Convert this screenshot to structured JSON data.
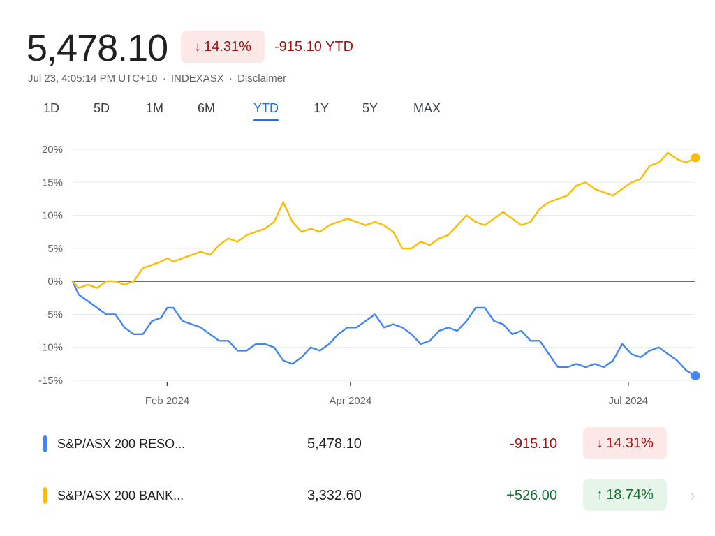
{
  "header": {
    "price": "5,478.10",
    "change_arrow": "↓",
    "change_pct": "14.31%",
    "ytd_change": "-915.10 YTD",
    "timestamp": "Jul 23, 4:05:14 PM UTC+10",
    "exchange": "INDEXASX",
    "disclaimer": "Disclaimer",
    "separator": "·"
  },
  "tabs": [
    {
      "label": "1D",
      "active": false
    },
    {
      "label": "5D",
      "active": false
    },
    {
      "label": "1M",
      "active": false
    },
    {
      "label": "6M",
      "active": false
    },
    {
      "label": "YTD",
      "active": true
    },
    {
      "label": "1Y",
      "active": false
    },
    {
      "label": "5Y",
      "active": false
    },
    {
      "label": "MAX",
      "active": false
    }
  ],
  "colors": {
    "blue_series": "#4285f4",
    "yellow_series": "#fbbc04",
    "negative": "#a50e0e",
    "positive": "#137333",
    "grid": "#e8eaed",
    "zero_line": "#3c4043"
  },
  "chart_data": {
    "type": "line",
    "title": "",
    "xlabel": "",
    "ylabel": "",
    "ylim": [
      -15,
      20
    ],
    "yticks": [
      20,
      15,
      10,
      5,
      0,
      -5,
      -10,
      -15
    ],
    "ytick_labels": [
      "20%",
      "15%",
      "10%",
      "5%",
      "0%",
      "-5%",
      "-10%",
      "-15%"
    ],
    "xlim": [
      "2024-01-01",
      "2024-07-23"
    ],
    "xticks": [
      {
        "date": "2024-02-01",
        "label": "Feb 2024"
      },
      {
        "date": "2024-04-01",
        "label": "Apr 2024"
      },
      {
        "date": "2024-07-01",
        "label": "Jul 2024"
      }
    ],
    "grid": true,
    "series": [
      {
        "name": "S&P/ASX 200 RESO...",
        "color": "#4285f4",
        "points": [
          [
            "2024-01-01",
            0
          ],
          [
            "2024-01-03",
            -2
          ],
          [
            "2024-01-06",
            -3
          ],
          [
            "2024-01-09",
            -4
          ],
          [
            "2024-01-12",
            -5
          ],
          [
            "2024-01-15",
            -5
          ],
          [
            "2024-01-18",
            -7
          ],
          [
            "2024-01-21",
            -8
          ],
          [
            "2024-01-24",
            -8
          ],
          [
            "2024-01-27",
            -6
          ],
          [
            "2024-01-30",
            -5.5
          ],
          [
            "2024-02-01",
            -4
          ],
          [
            "2024-02-03",
            -4
          ],
          [
            "2024-02-06",
            -6
          ],
          [
            "2024-02-09",
            -6.5
          ],
          [
            "2024-02-12",
            -7
          ],
          [
            "2024-02-15",
            -8
          ],
          [
            "2024-02-18",
            -9
          ],
          [
            "2024-02-21",
            -9
          ],
          [
            "2024-02-24",
            -10.5
          ],
          [
            "2024-02-27",
            -10.5
          ],
          [
            "2024-03-01",
            -9.5
          ],
          [
            "2024-03-04",
            -9.5
          ],
          [
            "2024-03-07",
            -10
          ],
          [
            "2024-03-10",
            -12
          ],
          [
            "2024-03-13",
            -12.5
          ],
          [
            "2024-03-16",
            -11.5
          ],
          [
            "2024-03-19",
            -10
          ],
          [
            "2024-03-22",
            -10.5
          ],
          [
            "2024-03-25",
            -9.5
          ],
          [
            "2024-03-28",
            -8
          ],
          [
            "2024-03-31",
            -7
          ],
          [
            "2024-04-03",
            -7
          ],
          [
            "2024-04-06",
            -6
          ],
          [
            "2024-04-09",
            -5
          ],
          [
            "2024-04-12",
            -7
          ],
          [
            "2024-04-15",
            -6.5
          ],
          [
            "2024-04-18",
            -7
          ],
          [
            "2024-04-21",
            -8
          ],
          [
            "2024-04-24",
            -9.5
          ],
          [
            "2024-04-27",
            -9
          ],
          [
            "2024-04-30",
            -7.5
          ],
          [
            "2024-05-03",
            -7
          ],
          [
            "2024-05-06",
            -7.5
          ],
          [
            "2024-05-09",
            -6
          ],
          [
            "2024-05-12",
            -4
          ],
          [
            "2024-05-15",
            -4
          ],
          [
            "2024-05-18",
            -6
          ],
          [
            "2024-05-21",
            -6.5
          ],
          [
            "2024-05-24",
            -8
          ],
          [
            "2024-05-27",
            -7.5
          ],
          [
            "2024-05-30",
            -9
          ],
          [
            "2024-06-02",
            -9
          ],
          [
            "2024-06-05",
            -11
          ],
          [
            "2024-06-08",
            -13
          ],
          [
            "2024-06-11",
            -13
          ],
          [
            "2024-06-14",
            -12.5
          ],
          [
            "2024-06-17",
            -13
          ],
          [
            "2024-06-20",
            -12.5
          ],
          [
            "2024-06-23",
            -13
          ],
          [
            "2024-06-26",
            -12
          ],
          [
            "2024-06-29",
            -9.5
          ],
          [
            "2024-07-02",
            -11
          ],
          [
            "2024-07-05",
            -11.5
          ],
          [
            "2024-07-08",
            -10.5
          ],
          [
            "2024-07-11",
            -10
          ],
          [
            "2024-07-14",
            -11
          ],
          [
            "2024-07-17",
            -12
          ],
          [
            "2024-07-20",
            -13.5
          ],
          [
            "2024-07-23",
            -14.31
          ]
        ]
      },
      {
        "name": "S&P/ASX 200 BANK...",
        "color": "#fbbc04",
        "points": [
          [
            "2024-01-01",
            0
          ],
          [
            "2024-01-03",
            -1
          ],
          [
            "2024-01-06",
            -0.5
          ],
          [
            "2024-01-09",
            -1
          ],
          [
            "2024-01-12",
            0
          ],
          [
            "2024-01-15",
            0
          ],
          [
            "2024-01-18",
            -0.5
          ],
          [
            "2024-01-21",
            0
          ],
          [
            "2024-01-24",
            2
          ],
          [
            "2024-01-27",
            2.5
          ],
          [
            "2024-01-30",
            3
          ],
          [
            "2024-02-01",
            3.5
          ],
          [
            "2024-02-03",
            3
          ],
          [
            "2024-02-06",
            3.5
          ],
          [
            "2024-02-09",
            4
          ],
          [
            "2024-02-12",
            4.5
          ],
          [
            "2024-02-15",
            4
          ],
          [
            "2024-02-18",
            5.5
          ],
          [
            "2024-02-21",
            6.5
          ],
          [
            "2024-02-24",
            6
          ],
          [
            "2024-02-27",
            7
          ],
          [
            "2024-03-01",
            7.5
          ],
          [
            "2024-03-04",
            8
          ],
          [
            "2024-03-07",
            9
          ],
          [
            "2024-03-10",
            12
          ],
          [
            "2024-03-13",
            9
          ],
          [
            "2024-03-16",
            7.5
          ],
          [
            "2024-03-19",
            8
          ],
          [
            "2024-03-22",
            7.5
          ],
          [
            "2024-03-25",
            8.5
          ],
          [
            "2024-03-28",
            9
          ],
          [
            "2024-03-31",
            9.5
          ],
          [
            "2024-04-03",
            9
          ],
          [
            "2024-04-06",
            8.5
          ],
          [
            "2024-04-09",
            9
          ],
          [
            "2024-04-12",
            8.5
          ],
          [
            "2024-04-15",
            7.5
          ],
          [
            "2024-04-18",
            5
          ],
          [
            "2024-04-21",
            5
          ],
          [
            "2024-04-24",
            6
          ],
          [
            "2024-04-27",
            5.5
          ],
          [
            "2024-04-30",
            6.5
          ],
          [
            "2024-05-03",
            7
          ],
          [
            "2024-05-06",
            8.5
          ],
          [
            "2024-05-09",
            10
          ],
          [
            "2024-05-12",
            9
          ],
          [
            "2024-05-15",
            8.5
          ],
          [
            "2024-05-18",
            9.5
          ],
          [
            "2024-05-21",
            10.5
          ],
          [
            "2024-05-24",
            9.5
          ],
          [
            "2024-05-27",
            8.5
          ],
          [
            "2024-05-30",
            9
          ],
          [
            "2024-06-02",
            11
          ],
          [
            "2024-06-05",
            12
          ],
          [
            "2024-06-08",
            12.5
          ],
          [
            "2024-06-11",
            13
          ],
          [
            "2024-06-14",
            14.5
          ],
          [
            "2024-06-17",
            15
          ],
          [
            "2024-06-20",
            14
          ],
          [
            "2024-06-23",
            13.5
          ],
          [
            "2024-06-26",
            13
          ],
          [
            "2024-06-29",
            14
          ],
          [
            "2024-07-02",
            15
          ],
          [
            "2024-07-05",
            15.5
          ],
          [
            "2024-07-08",
            17.5
          ],
          [
            "2024-07-11",
            18
          ],
          [
            "2024-07-14",
            19.5
          ],
          [
            "2024-07-17",
            18.5
          ],
          [
            "2024-07-20",
            18
          ],
          [
            "2024-07-23",
            18.74
          ]
        ]
      }
    ]
  },
  "legend": [
    {
      "name": "S&P/ASX 200 RESO...",
      "value": "5,478.10",
      "change": "-915.10",
      "pct_arrow": "↓",
      "pct": "14.31%",
      "direction": "down",
      "color": "#4285f4"
    },
    {
      "name": "S&P/ASX 200 BANK...",
      "value": "3,332.60",
      "change": "+526.00",
      "pct_arrow": "↑",
      "pct": "18.74%",
      "direction": "up",
      "color": "#fbbc04"
    }
  ],
  "row_chevron": "›"
}
